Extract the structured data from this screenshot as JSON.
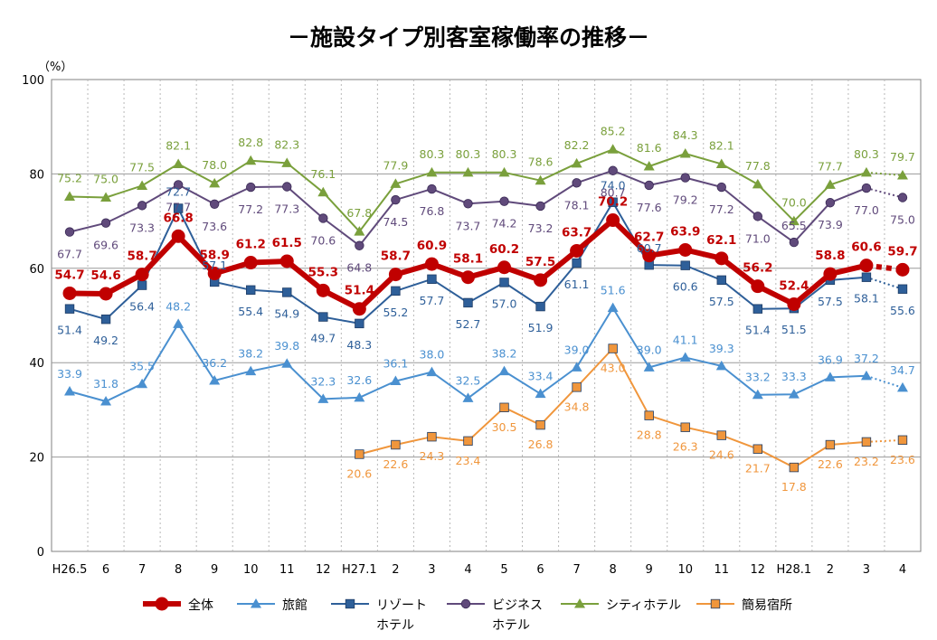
{
  "chart_data": {
    "type": "line",
    "title": "－施設タイプ別客室稼働率の推移－",
    "y_unit": "（%）",
    "ylim": [
      0,
      100
    ],
    "yticks": [
      0,
      20,
      40,
      60,
      80,
      100
    ],
    "grid": true,
    "legend_position": "bottom",
    "categories": [
      "H26.5",
      "6",
      "7",
      "8",
      "9",
      "10",
      "11",
      "12",
      "H27.1",
      "2",
      "3",
      "4",
      "5",
      "6",
      "7",
      "8",
      "9",
      "10",
      "11",
      "12",
      "H28.1",
      "2",
      "3",
      "4"
    ],
    "series": [
      {
        "key": "total",
        "name": "全体",
        "color": "#c00000",
        "marker": "circle",
        "bold": true,
        "values": [
          54.7,
          54.6,
          58.7,
          66.8,
          58.9,
          61.2,
          61.5,
          55.3,
          51.4,
          58.7,
          60.9,
          58.1,
          60.2,
          57.5,
          63.7,
          70.2,
          62.7,
          63.9,
          62.1,
          56.2,
          52.4,
          58.8,
          60.6,
          59.7
        ]
      },
      {
        "key": "ryokan",
        "name": "旅館",
        "color": "#4a90d0",
        "marker": "triangle",
        "values": [
          33.9,
          31.8,
          35.5,
          48.2,
          36.2,
          38.2,
          39.8,
          32.3,
          32.6,
          36.1,
          38.0,
          32.5,
          38.2,
          33.4,
          39.0,
          51.6,
          39.0,
          41.1,
          39.3,
          33.2,
          33.3,
          36.9,
          37.2,
          34.7
        ]
      },
      {
        "key": "resort",
        "name": "リゾート\nホテル",
        "color": "#2e5f99",
        "marker": "square",
        "values": [
          51.4,
          49.2,
          56.4,
          72.7,
          57.1,
          55.4,
          54.9,
          49.7,
          48.3,
          55.2,
          57.7,
          52.7,
          57.0,
          51.9,
          61.1,
          74.0,
          60.7,
          60.6,
          57.5,
          51.4,
          51.5,
          57.5,
          58.1,
          55.6
        ]
      },
      {
        "key": "business",
        "name": "ビジネス\nホテル",
        "color": "#604a7b",
        "marker": "circle",
        "values": [
          67.7,
          69.6,
          73.3,
          77.7,
          73.6,
          77.2,
          77.3,
          70.6,
          64.8,
          74.5,
          76.8,
          73.7,
          74.2,
          73.2,
          78.1,
          80.7,
          77.6,
          79.2,
          77.2,
          71.0,
          65.5,
          73.9,
          77.0,
          75.0
        ]
      },
      {
        "key": "city",
        "name": "シティホテル",
        "color": "#7aa03c",
        "marker": "triangle",
        "values": [
          75.2,
          75.0,
          77.5,
          82.1,
          78.0,
          82.8,
          82.3,
          76.1,
          67.8,
          77.9,
          80.3,
          80.3,
          80.3,
          78.6,
          82.2,
          85.2,
          81.6,
          84.3,
          82.1,
          77.8,
          70.0,
          77.7,
          80.3,
          79.7
        ]
      },
      {
        "key": "simple",
        "name": "簡易宿所",
        "color": "#f0963c",
        "marker": "square",
        "values": [
          null,
          null,
          null,
          null,
          null,
          null,
          null,
          null,
          20.6,
          22.6,
          24.3,
          23.4,
          30.5,
          26.8,
          34.8,
          43.0,
          28.8,
          26.3,
          24.6,
          21.7,
          17.8,
          22.6,
          23.2,
          23.6
        ]
      }
    ]
  }
}
